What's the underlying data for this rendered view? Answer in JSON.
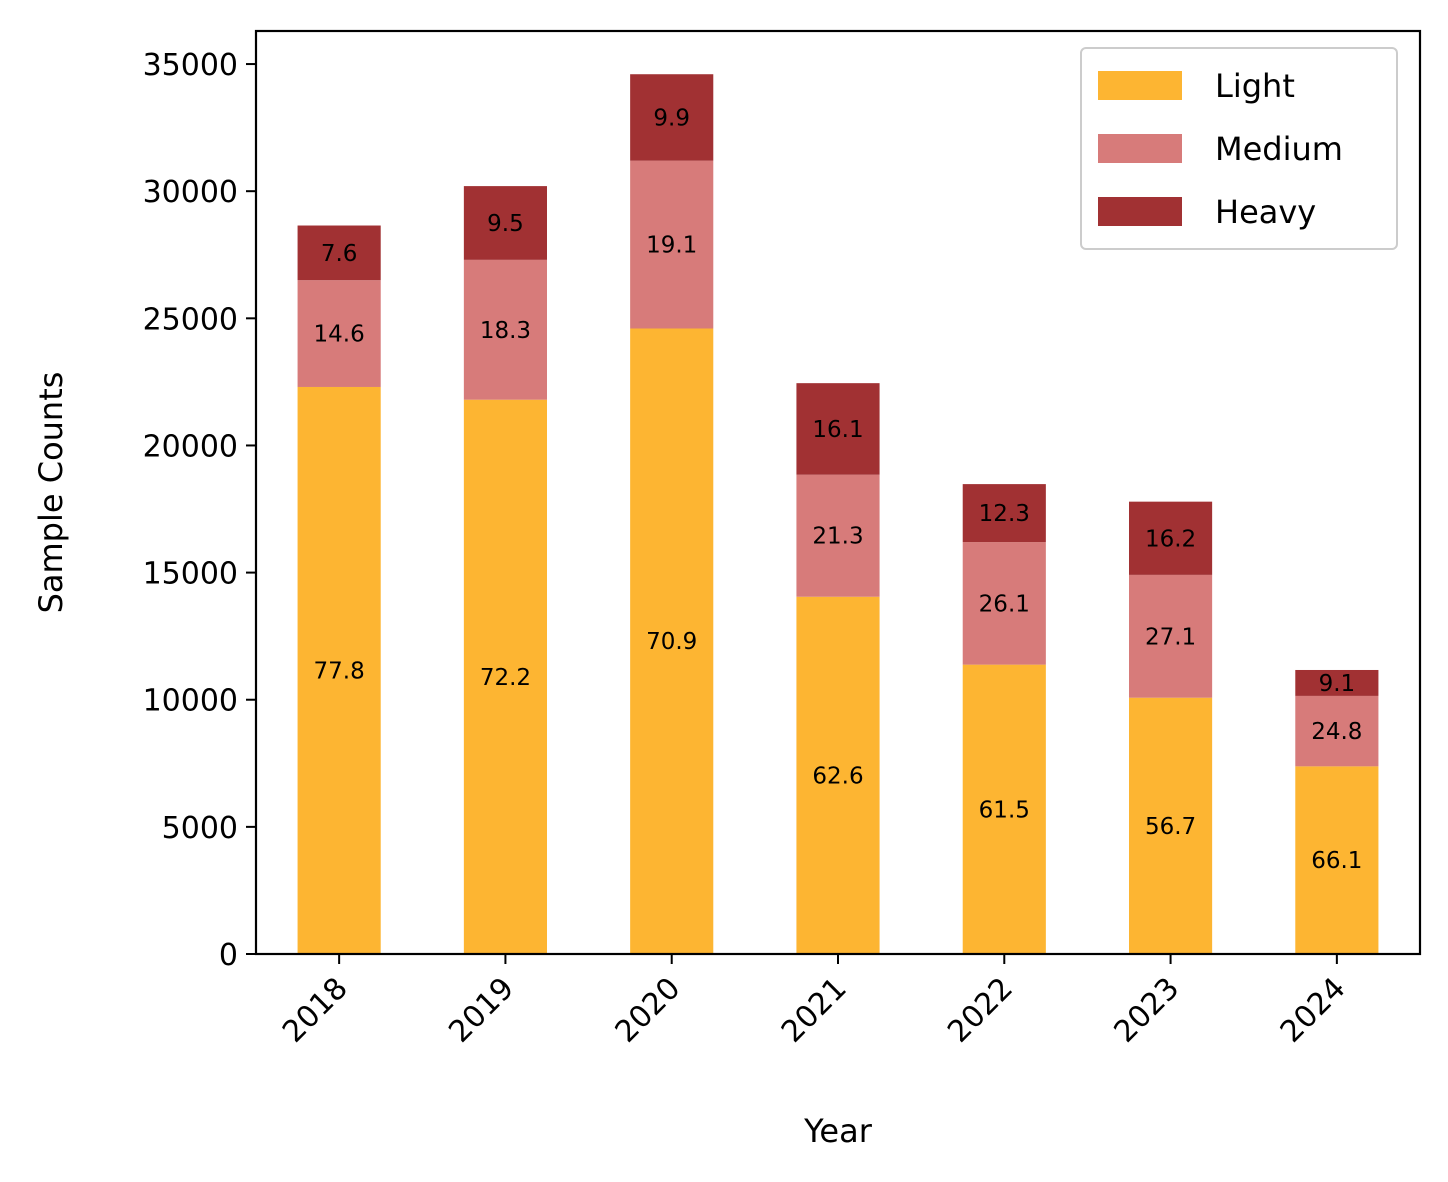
{
  "chart_data": {
    "type": "bar",
    "stacked": true,
    "title": "",
    "xlabel": "Year",
    "ylabel": "Sample Counts",
    "categories": [
      "2018",
      "2019",
      "2020",
      "2021",
      "2022",
      "2023",
      "2024"
    ],
    "ylim": [
      0,
      36300
    ],
    "yticks": [
      0,
      5000,
      10000,
      15000,
      20000,
      25000,
      30000,
      35000
    ],
    "series": [
      {
        "name": "Light",
        "color": "#FDB532",
        "values": [
          22300,
          21800,
          24600,
          14050,
          11380,
          10080,
          7380
        ],
        "percent_labels": [
          "77.8",
          "72.2",
          "70.9",
          "62.6",
          "61.5",
          "56.7",
          "66.1"
        ]
      },
      {
        "name": "Medium",
        "color": "#D77B7A",
        "values": [
          4200,
          5500,
          6600,
          4800,
          4820,
          4830,
          2770
        ],
        "percent_labels": [
          "14.6",
          "18.3",
          "19.1",
          "21.3",
          "26.1",
          "27.1",
          "24.8"
        ]
      },
      {
        "name": "Heavy",
        "color": "#A13133",
        "values": [
          2150,
          2900,
          3400,
          3600,
          2280,
          2880,
          1020
        ],
        "percent_labels": [
          "7.6",
          "9.5",
          "9.9",
          "16.1",
          "12.3",
          "16.2",
          "9.1"
        ]
      }
    ],
    "legend_position": "top-right",
    "grid": false
  }
}
